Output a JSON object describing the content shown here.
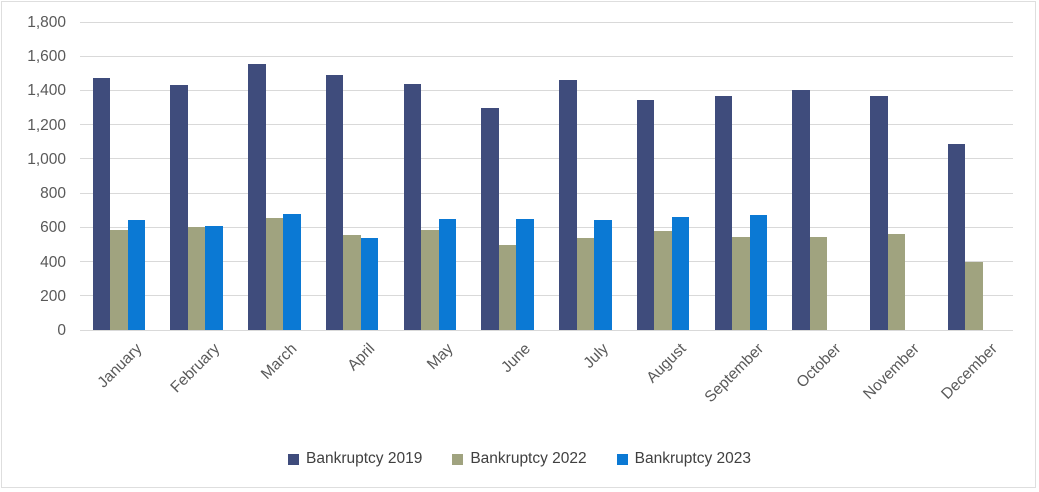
{
  "chart_data": {
    "type": "bar",
    "title": "",
    "xlabel": "",
    "ylabel": "",
    "categories": [
      "January",
      "February",
      "March",
      "April",
      "May",
      "June",
      "July",
      "August",
      "September",
      "October",
      "November",
      "December"
    ],
    "series": [
      {
        "name": "Bankruptcy 2019",
        "color": "#3F4C7C",
        "values": [
          1475,
          1430,
          1555,
          1490,
          1440,
          1300,
          1460,
          1345,
          1370,
          1405,
          1365,
          1085
        ]
      },
      {
        "name": "Bankruptcy 2022",
        "color": "#A0A37F",
        "values": [
          585,
          600,
          655,
          555,
          585,
          495,
          540,
          580,
          545,
          545,
          560,
          400
        ]
      },
      {
        "name": "Bankruptcy 2023",
        "color": "#0B79D4",
        "values": [
          640,
          610,
          680,
          540,
          650,
          650,
          640,
          660,
          670,
          null,
          null,
          null
        ]
      }
    ],
    "ylim": [
      0,
      1800
    ],
    "y_tick_step": 200,
    "y_tick_labels": [
      "0",
      "200",
      "400",
      "600",
      "800",
      "1,000",
      "1,200",
      "1,400",
      "1,600",
      "1,800"
    ],
    "grid": true,
    "legend_position": "bottom"
  },
  "styles": {
    "gridline_color": "#D9D9D9",
    "axis_text_color": "#595959",
    "legend_text_color": "#404040",
    "frame_border_color": "#DEDEDE",
    "background": "#FFFFFF"
  }
}
